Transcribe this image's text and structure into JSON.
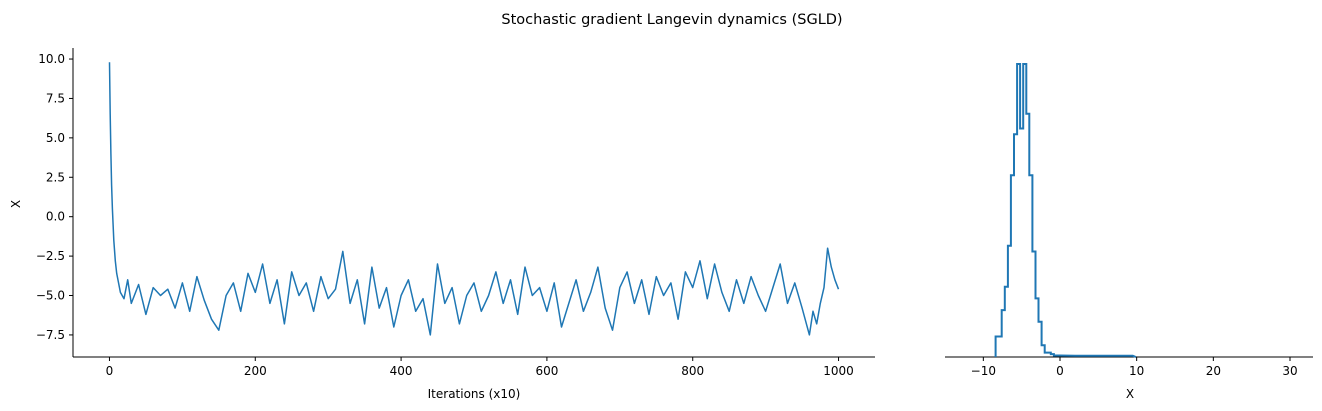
{
  "figure": {
    "suptitle": "Stochastic gradient Langevin dynamics (SGLD)"
  },
  "colors": {
    "series": "#1f77b4",
    "axis": "#000000",
    "background": "#ffffff"
  },
  "chart_data": [
    {
      "type": "line",
      "title": "",
      "xlabel": "Iterations (x10)",
      "ylabel": "X",
      "xlim": [
        -50,
        1050
      ],
      "ylim": [
        -8.9,
        10.7
      ],
      "xticks": [
        0,
        200,
        400,
        600,
        800,
        1000
      ],
      "xtick_labels": [
        "0",
        "200",
        "400",
        "600",
        "800",
        "1000"
      ],
      "yticks": [
        -7.5,
        -5.0,
        -2.5,
        0.0,
        2.5,
        5.0,
        7.5,
        10.0
      ],
      "ytick_labels": [
        "−7.5",
        "−5.0",
        "−2.5",
        "0.0",
        "2.5",
        "5.0",
        "7.5",
        "10.0"
      ],
      "grid": false,
      "spines": "left-bottom",
      "series": [
        {
          "x": [
            0,
            1,
            2,
            3,
            4,
            5,
            6,
            8,
            10,
            15,
            20,
            25,
            30,
            40,
            50,
            60,
            70,
            80,
            90,
            100,
            110,
            120,
            130,
            140,
            150,
            160,
            170,
            180,
            190,
            200,
            210,
            220,
            230,
            240,
            250,
            260,
            270,
            280,
            290,
            300,
            310,
            320,
            330,
            340,
            350,
            360,
            370,
            380,
            390,
            400,
            410,
            420,
            430,
            440,
            450,
            460,
            470,
            480,
            490,
            500,
            510,
            520,
            530,
            540,
            550,
            560,
            570,
            580,
            590,
            600,
            610,
            620,
            630,
            640,
            650,
            660,
            670,
            680,
            690,
            700,
            710,
            720,
            730,
            740,
            750,
            760,
            770,
            780,
            790,
            800,
            810,
            820,
            830,
            840,
            850,
            860,
            870,
            880,
            890,
            900,
            910,
            920,
            930,
            940,
            950,
            960,
            965,
            970,
            975,
            980,
            985,
            990,
            995,
            1000
          ],
          "y": [
            9.8,
            6.5,
            4.0,
            2.0,
            0.5,
            -0.5,
            -1.5,
            -2.8,
            -3.6,
            -4.8,
            -5.2,
            -4.0,
            -5.5,
            -4.3,
            -6.2,
            -4.5,
            -5.0,
            -4.6,
            -5.8,
            -4.2,
            -6.0,
            -3.8,
            -5.3,
            -6.5,
            -7.2,
            -5.0,
            -4.2,
            -6.0,
            -3.6,
            -4.8,
            -3.0,
            -5.5,
            -4.0,
            -6.8,
            -3.5,
            -5.0,
            -4.2,
            -6.0,
            -3.8,
            -5.2,
            -4.6,
            -2.2,
            -5.5,
            -4.0,
            -6.8,
            -3.2,
            -5.8,
            -4.5,
            -7.0,
            -5.0,
            -4.0,
            -6.0,
            -5.2,
            -7.5,
            -3.0,
            -5.5,
            -4.5,
            -6.8,
            -5.0,
            -4.2,
            -6.0,
            -5.0,
            -3.5,
            -5.5,
            -4.0,
            -6.2,
            -3.2,
            -5.0,
            -4.5,
            -6.0,
            -4.2,
            -7.0,
            -5.5,
            -4.0,
            -6.0,
            -4.8,
            -3.2,
            -5.8,
            -7.2,
            -4.5,
            -3.5,
            -5.5,
            -4.0,
            -6.2,
            -3.8,
            -5.0,
            -4.2,
            -6.5,
            -3.5,
            -4.5,
            -2.8,
            -5.2,
            -3.0,
            -4.8,
            -6.0,
            -4.0,
            -5.5,
            -3.8,
            -5.0,
            -6.0,
            -4.5,
            -3.0,
            -5.5,
            -4.2,
            -5.8,
            -7.5,
            -6.0,
            -6.8,
            -5.5,
            -4.5,
            -2.0,
            -3.2,
            -4.0,
            -4.6
          ]
        }
      ]
    },
    {
      "type": "area",
      "title": "",
      "xlabel": "X",
      "ylabel": "",
      "xlim": [
        -15,
        33
      ],
      "ylim": [
        0,
        1
      ],
      "xticks": [
        -10,
        0,
        10,
        20,
        30
      ],
      "xtick_labels": [
        "−10",
        "0",
        "10",
        "20",
        "30"
      ],
      "grid": false,
      "spines": "bottom",
      "histtype": "step",
      "series": [
        {
          "bin_edges": [
            -8.4,
            -8.0,
            -7.6,
            -7.2,
            -6.8,
            -6.4,
            -6.0,
            -5.6,
            -5.2,
            -4.8,
            -4.4,
            -4.0,
            -3.6,
            -3.2,
            -2.8,
            -2.4,
            -2.0,
            -1.6,
            -1.2,
            -0.8,
            -0.4
          ],
          "counts": [
            0.07,
            0.07,
            0.16,
            0.24,
            0.38,
            0.62,
            0.76,
            1.0,
            0.78,
            1.0,
            0.83,
            0.62,
            0.36,
            0.2,
            0.12,
            0.04,
            0.015,
            0.015,
            0.01,
            0.005
          ],
          "tail": [
            [
              0.0,
              0.005
            ],
            [
              2.0,
              0.004
            ],
            [
              4.5,
              0.004
            ],
            [
              9.5,
              0.004
            ],
            [
              9.9,
              0.0
            ]
          ]
        }
      ]
    }
  ]
}
